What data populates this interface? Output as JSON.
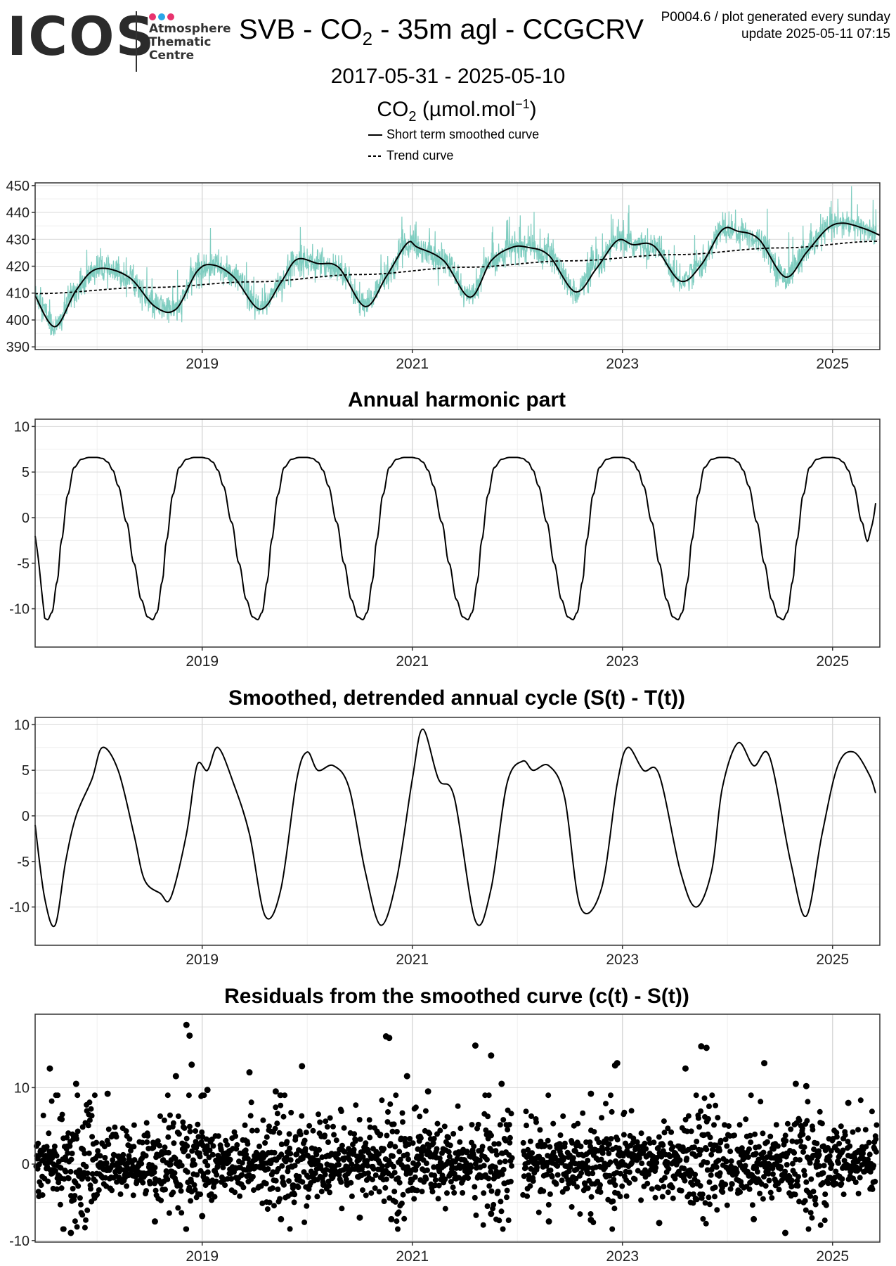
{
  "header": {
    "logo_text": "ICOS",
    "logo_subtitle": [
      "Atmosphere",
      "Thematic",
      "Centre"
    ],
    "logo_dot_colors": [
      "#e8336e",
      "#2ba6e8",
      "#e8336e"
    ],
    "title_prefix": "SVB - CO",
    "title_sub": "2",
    "title_suffix": " - 35m agl - CCGCRV",
    "plot_id": "P0004.6 / plot generated every sunday",
    "update": "update  2025-05-11 07:15",
    "date_range": "2017-05-31 - 2025-05-10",
    "ylabel_prefix": "CO",
    "ylabel_sub": "2",
    "ylabel_mid": " (µmol.mol",
    "ylabel_sup": "−1",
    "ylabel_end": ")"
  },
  "legend": {
    "solid": "Short term smoothed curve",
    "dashed": "Trend curve"
  },
  "colors": {
    "raw": "#7fcdc0",
    "line": "#000000",
    "grid_major": "#d9d9d9",
    "grid_minor": "#efefef",
    "logo_text": "#2b2b2b"
  },
  "chart_data": [
    {
      "id": "co2",
      "type": "line",
      "title": "",
      "xlim": [
        2017.41,
        2025.45
      ],
      "ylim": [
        389,
        451
      ],
      "x_ticks": [
        2019,
        2021,
        2023,
        2025
      ],
      "x_tick_labels": [
        "2019",
        "2021",
        "2023",
        "2025"
      ],
      "y_ticks": [
        390,
        400,
        410,
        420,
        430,
        440,
        450
      ],
      "y_tick_labels": [
        "390",
        "400",
        "410",
        "420",
        "430",
        "440",
        "450"
      ],
      "series": [
        {
          "name": "Short term smoothed curve",
          "style": "solid",
          "x": [
            2017.41,
            2017.6,
            2017.8,
            2018.0,
            2018.3,
            2018.55,
            2018.75,
            2018.95,
            2019.1,
            2019.3,
            2019.55,
            2019.75,
            2019.9,
            2020.1,
            2020.3,
            2020.55,
            2020.75,
            2020.95,
            2021.05,
            2021.3,
            2021.55,
            2021.75,
            2021.95,
            2022.1,
            2022.3,
            2022.55,
            2022.75,
            2022.95,
            2023.1,
            2023.3,
            2023.55,
            2023.75,
            2023.95,
            2024.1,
            2024.3,
            2024.55,
            2024.75,
            2024.95,
            2025.1,
            2025.3,
            2025.45
          ],
          "y": [
            409,
            397.5,
            411,
            419,
            416,
            405,
            404,
            418,
            420.5,
            416,
            404,
            414,
            422.5,
            421,
            419.5,
            405,
            416,
            428.5,
            427,
            422,
            408.5,
            422,
            427,
            427,
            424,
            410.5,
            419,
            429.5,
            428,
            427.5,
            414.5,
            420.5,
            433.5,
            433,
            430,
            416,
            425,
            434,
            436,
            434,
            431.5
          ]
        },
        {
          "name": "Trend curve",
          "style": "dashed",
          "x": [
            2017.41,
            2018.5,
            2019.5,
            2020.5,
            2021.5,
            2022.5,
            2023.5,
            2024.5,
            2025.45
          ],
          "y": [
            409.8,
            412.1,
            414.2,
            416.9,
            419.6,
            422.0,
            424.3,
            426.8,
            429.3
          ]
        }
      ]
    },
    {
      "id": "harmonic",
      "type": "line",
      "title": "Annual harmonic part",
      "xlim": [
        2017.41,
        2025.45
      ],
      "ylim": [
        -14.2,
        10.8
      ],
      "x_ticks": [
        2019,
        2021,
        2023,
        2025
      ],
      "x_tick_labels": [
        "2019",
        "2021",
        "2023",
        "2025"
      ],
      "y_ticks": [
        -10,
        -5,
        0,
        5,
        10
      ],
      "y_tick_labels": [
        "-10",
        "-5",
        "0",
        "5",
        "10"
      ],
      "period": 1.0,
      "cycle": {
        "x_phase": [
          0.0,
          0.05,
          0.1,
          0.15,
          0.2,
          0.28,
          0.35,
          0.42,
          0.48,
          0.53,
          0.57,
          0.62,
          0.66,
          0.72,
          0.78,
          0.85,
          0.92,
          1.0
        ],
        "y": [
          6.6,
          6.5,
          6.1,
          5.2,
          3.5,
          -0.5,
          -5.0,
          -9.0,
          -10.9,
          -11.2,
          -10.4,
          -7.0,
          -2.5,
          2.5,
          5.5,
          6.4,
          6.6,
          6.6
        ]
      },
      "x_start": 2017.41,
      "x_end": 2025.41,
      "end_value": 1.6,
      "start_value": -2.0
    },
    {
      "id": "detrended",
      "type": "line",
      "title": "Smoothed, detrended annual cycle (S(t) - T(t))",
      "xlim": [
        2017.41,
        2025.45
      ],
      "ylim": [
        -14.2,
        10.8
      ],
      "x_ticks": [
        2019,
        2021,
        2023,
        2025
      ],
      "x_tick_labels": [
        "2019",
        "2021",
        "2023",
        "2025"
      ],
      "y_ticks": [
        -10,
        -5,
        0,
        5,
        10
      ],
      "y_tick_labels": [
        "-10",
        "-5",
        "0",
        "5",
        "10"
      ],
      "series": [
        {
          "name": "",
          "style": "solid",
          "x": [
            2017.41,
            2017.5,
            2017.6,
            2017.7,
            2017.8,
            2017.95,
            2018.05,
            2018.2,
            2018.35,
            2018.45,
            2018.6,
            2018.7,
            2018.85,
            2018.95,
            2019.05,
            2019.15,
            2019.3,
            2019.45,
            2019.6,
            2019.75,
            2019.9,
            2020.0,
            2020.1,
            2020.25,
            2020.4,
            2020.55,
            2020.7,
            2020.85,
            2021.0,
            2021.1,
            2021.25,
            2021.4,
            2021.6,
            2021.75,
            2021.9,
            2022.05,
            2022.15,
            2022.3,
            2022.45,
            2022.6,
            2022.8,
            2022.95,
            2023.05,
            2023.2,
            2023.35,
            2023.55,
            2023.7,
            2023.85,
            2023.95,
            2024.1,
            2024.25,
            2024.4,
            2024.6,
            2024.75,
            2024.9,
            2025.05,
            2025.2,
            2025.35,
            2025.41
          ],
          "y": [
            -1,
            -9,
            -12,
            -5,
            0,
            4,
            7.5,
            5,
            -2,
            -7,
            -8.5,
            -9,
            -2,
            5.5,
            5,
            7.5,
            3.5,
            -2,
            -11,
            -8,
            4,
            7,
            5,
            5.5,
            3,
            -6,
            -12,
            -7,
            4,
            9.5,
            4,
            2,
            -11.5,
            -8,
            3.5,
            6,
            5,
            5.5,
            2,
            -10,
            -8,
            3.5,
            7.5,
            5,
            4.5,
            -6,
            -10,
            -6,
            3,
            8,
            5.5,
            6.5,
            -5,
            -11,
            -2,
            5.5,
            7,
            4.5,
            2.5
          ]
        }
      ]
    },
    {
      "id": "residuals",
      "type": "scatter",
      "title": "Residuals from the smoothed curve (c(t) - S(t))",
      "xlim": [
        2017.41,
        2025.45
      ],
      "ylim": [
        -10.2,
        19.6
      ],
      "x_ticks": [
        2019,
        2021,
        2023,
        2025
      ],
      "x_tick_labels": [
        "2019",
        "2021",
        "2023",
        "2025"
      ],
      "y_ticks": [
        -10,
        0,
        10
      ],
      "y_tick_labels": [
        "-10",
        "0",
        "10"
      ],
      "gap": [
        2021.95,
        2022.05
      ],
      "spread": 3.8,
      "outliers": {
        "x": [
          2017.55,
          2017.8,
          2018.1,
          2018.85,
          2018.88,
          2018.9,
          2018.75,
          2019.05,
          2019.45,
          2019.95,
          2019.7,
          2020.75,
          2020.78,
          2020.95,
          2021.15,
          2021.6,
          2021.75,
          2021.85,
          2022.7,
          2022.95,
          2022.93,
          2023.75,
          2023.8,
          2023.6,
          2024.35,
          2024.65,
          2024.75,
          2025.15
        ],
        "y": [
          12.5,
          10.5,
          9.2,
          18.2,
          16.8,
          13,
          11.5,
          9.7,
          12,
          12.8,
          9.5,
          16.7,
          16.5,
          11.5,
          9.5,
          15.5,
          14.2,
          10.5,
          9.2,
          13.2,
          12.9,
          15.4,
          15.2,
          12.5,
          13.2,
          10.5,
          10.2,
          8
        ],
        "neg_x": [
          2017.75,
          2018.55,
          2019.0,
          2019.75,
          2020.5,
          2020.8,
          2021.75,
          2022.3,
          2022.7,
          2023.35,
          2024.25,
          2024.55
        ],
        "neg_y": [
          -9,
          -7.5,
          -6.8,
          -7.2,
          -7,
          -7.2,
          -6.5,
          -7.5,
          -7.3,
          -7.7,
          -7.2,
          -9
        ]
      }
    }
  ]
}
